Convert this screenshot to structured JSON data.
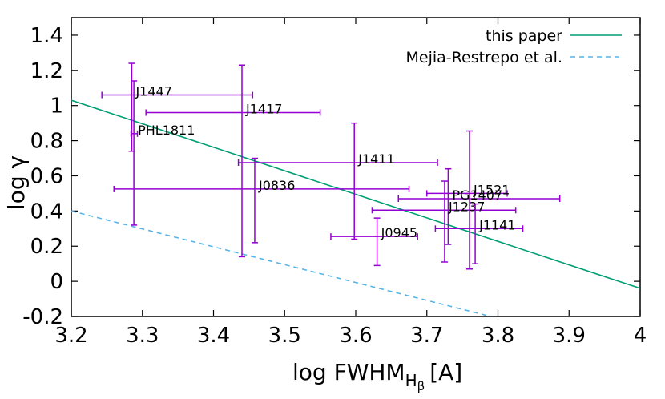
{
  "chart_data": {
    "type": "scatter",
    "title": "",
    "xlabel_main": "log FWHM",
    "xlabel_sub": "H",
    "xlabel_subsub": "β",
    "xlabel_unit": "[A]",
    "ylabel": "log γ",
    "xlim": [
      3.2,
      4.0
    ],
    "ylim": [
      -0.2,
      1.5
    ],
    "x_ticks": [
      3.2,
      3.3,
      3.4,
      3.5,
      3.6,
      3.7,
      3.8,
      3.9,
      4.0
    ],
    "x_tick_labels": [
      "3.2",
      "3.3",
      "3.4",
      "3.5",
      "3.6",
      "3.7",
      "3.8",
      "3.9",
      "4"
    ],
    "y_ticks": [
      -0.2,
      0,
      0.2,
      0.4,
      0.6,
      0.8,
      1.0,
      1.2,
      1.4
    ],
    "y_tick_labels": [
      "-0.2",
      "0",
      "0.2",
      "0.4",
      "0.6",
      "0.8",
      "1",
      "1.2",
      "1.4"
    ],
    "colors": {
      "points": "#9400d3",
      "this_paper": "#009e73",
      "mejia": "#56b4e9"
    },
    "legend": [
      {
        "label": "this paper",
        "style": "solid",
        "color": "#009e73"
      },
      {
        "label": "Mejia-Restrepo et al.",
        "style": "dashed",
        "color": "#56b4e9"
      }
    ],
    "lines": [
      {
        "name": "this paper",
        "x": [
          3.2,
          4.0
        ],
        "y": [
          1.03,
          -0.04
        ]
      },
      {
        "name": "Mejia-Restrepo et al.",
        "x": [
          3.2,
          3.79
        ],
        "y": [
          0.4,
          -0.2
        ]
      }
    ],
    "points": [
      {
        "name": "J1447",
        "x": 3.285,
        "y": 1.06,
        "xerr": [
          3.243,
          3.455
        ],
        "yerr": [
          0.74,
          1.24
        ]
      },
      {
        "name": "J1417",
        "x": 3.44,
        "y": 0.96,
        "xerr": [
          3.305,
          3.55
        ],
        "yerr": [
          0.14,
          1.23
        ]
      },
      {
        "name": "PHL1811",
        "x": 3.288,
        "y": 0.84,
        "xerr": [
          3.284,
          3.293
        ],
        "yerr": [
          0.32,
          1.14
        ]
      },
      {
        "name": "J1411",
        "x": 3.598,
        "y": 0.675,
        "xerr": [
          3.435,
          3.715
        ],
        "yerr": [
          0.24,
          0.9
        ]
      },
      {
        "name": "J0836",
        "x": 3.458,
        "y": 0.525,
        "xerr": [
          3.26,
          3.675
        ],
        "yerr": [
          0.22,
          0.7
        ]
      },
      {
        "name": "J1521",
        "x": 3.76,
        "y": 0.5,
        "xerr": [
          3.7,
          3.813
        ],
        "yerr": [
          0.07,
          0.855
        ]
      },
      {
        "name": "PG1407",
        "x": 3.73,
        "y": 0.47,
        "xerr": [
          3.66,
          3.887
        ],
        "yerr": [
          0.21,
          0.64
        ]
      },
      {
        "name": "J1237",
        "x": 3.725,
        "y": 0.405,
        "xerr": [
          3.623,
          3.825
        ],
        "yerr": [
          0.11,
          0.57
        ]
      },
      {
        "name": "J0945",
        "x": 3.63,
        "y": 0.255,
        "xerr": [
          3.565,
          3.687
        ],
        "yerr": [
          0.09,
          0.36
        ]
      },
      {
        "name": "J1141",
        "x": 3.768,
        "y": 0.3,
        "xerr": [
          3.712,
          3.835
        ],
        "yerr": [
          0.1,
          0.44
        ]
      }
    ],
    "label_offsets_note": "labels placed to the right of points"
  }
}
